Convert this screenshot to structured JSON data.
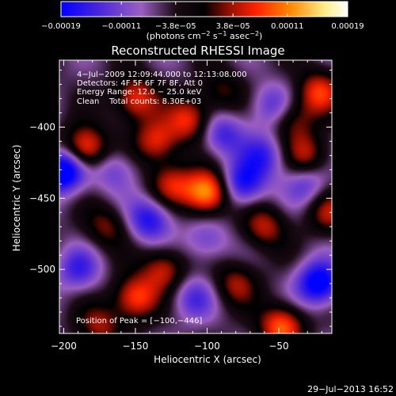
{
  "chart_data": {
    "type": "heatmap",
    "title": "Reconstructed RHESSI Image",
    "xlabel": "Heliocentric X (arcsec)",
    "ylabel": "Heliocentric Y (arcsec)",
    "xlim": [
      -203,
      -13
    ],
    "ylim": [
      -545,
      -353
    ],
    "xticks": [
      -200,
      -150,
      -100,
      -50
    ],
    "yticks": [
      -400,
      -450,
      -500
    ],
    "x_tick_labels": [
      "−200",
      "−150",
      "−100",
      "−50"
    ],
    "y_tick_labels": [
      "−400",
      "−450",
      "−500"
    ],
    "colorbar": {
      "range": [
        -0.00019,
        0.00019
      ],
      "ticks": [
        -0.00019,
        -0.00011,
        -3.8e-05,
        3.8e-05,
        0.00011,
        0.00019
      ],
      "tick_labels": [
        "−0.00019",
        "−0.00011",
        "−3.8e−05",
        "3.8e−05",
        "0.00011",
        "0.00019"
      ],
      "unit_prefix": "(photons cm",
      "unit_exp1": "−2",
      "unit_mid": " s",
      "unit_exp2": "−1",
      "unit_mid2": " asec",
      "unit_exp3": "−2",
      "unit_suffix": ")",
      "colormap": [
        "#0000ff",
        "#5533cc",
        "#9b5fc0",
        "#1a0a14",
        "#000000",
        "#aa1100",
        "#ff2200",
        "#ff8800",
        "#ffee88",
        "#ffffff"
      ]
    },
    "annotations": [
      "4−Jul−2009 12:09:44.000 to 12:13:08.000",
      "Detectors: 4F 5F 6F 7F 8F, Att 0",
      "Energy Range: 12.0 − 25.0 keV",
      "Clean    Total counts: 8.30E+03",
      "Position of Peak = [−100,−446]"
    ],
    "hot_sources": [
      {
        "x": -100,
        "y": -446,
        "value": 0.00019
      },
      {
        "x": -185,
        "y": -415,
        "value": 0.00016
      },
      {
        "x": -150,
        "y": -380,
        "value": 0.00013
      },
      {
        "x": -135,
        "y": -410,
        "value": 0.00012
      },
      {
        "x": -112,
        "y": -395,
        "value": 0.00012
      },
      {
        "x": -150,
        "y": -520,
        "value": 0.00014
      },
      {
        "x": -130,
        "y": -500,
        "value": 0.00011
      },
      {
        "x": -48,
        "y": -540,
        "value": 0.00015
      },
      {
        "x": -22,
        "y": -375,
        "value": 0.00012
      },
      {
        "x": -30,
        "y": -420,
        "value": 0.0001
      },
      {
        "x": -60,
        "y": -470,
        "value": 0.0001
      },
      {
        "x": -125,
        "y": -440,
        "value": 0.0001
      },
      {
        "x": -170,
        "y": -470,
        "value": 8e-05
      },
      {
        "x": -80,
        "y": -510,
        "value": 9e-05
      },
      {
        "x": -40,
        "y": -395,
        "value": 8e-05
      },
      {
        "x": -15,
        "y": -460,
        "value": 9e-05
      },
      {
        "x": -90,
        "y": -375,
        "value": 7e-05
      },
      {
        "x": -175,
        "y": -540,
        "value": 9e-05
      }
    ],
    "cold_sources": [
      {
        "x": -200,
        "y": -430,
        "value": -0.00019
      },
      {
        "x": -22,
        "y": -510,
        "value": -0.00016
      },
      {
        "x": -140,
        "y": -465,
        "value": -0.00012
      },
      {
        "x": -75,
        "y": -440,
        "value": -0.00013
      },
      {
        "x": -90,
        "y": -405,
        "value": -0.0001
      },
      {
        "x": -60,
        "y": -420,
        "value": -9e-05
      },
      {
        "x": -110,
        "y": -520,
        "value": -8e-05
      },
      {
        "x": -190,
        "y": -500,
        "value": -9e-05
      },
      {
        "x": -55,
        "y": -385,
        "value": -8e-05
      },
      {
        "x": -165,
        "y": -430,
        "value": -7e-05
      },
      {
        "x": -30,
        "y": -440,
        "value": -8e-05
      },
      {
        "x": -100,
        "y": -480,
        "value": -7e-05
      }
    ]
  },
  "footer_timestamp": "29−Jul−2013 16:52"
}
